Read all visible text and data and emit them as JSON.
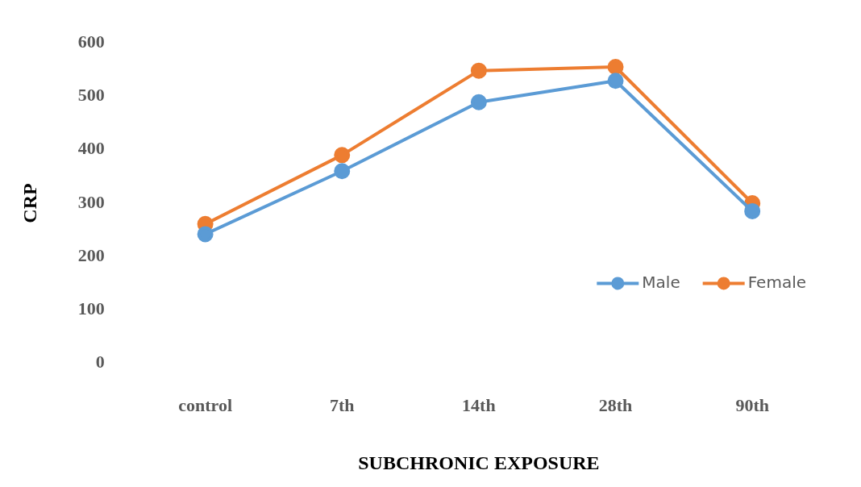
{
  "chart_data": {
    "type": "line",
    "xlabel": "SUBCHRONIC EXPOSURE",
    "ylabel": "CRP",
    "categories": [
      "control",
      "7th",
      "14th",
      "28th",
      "90th"
    ],
    "series": [
      {
        "name": "Male",
        "color": "#5b9bd5",
        "values": [
          242,
          360,
          489,
          529,
          285
        ]
      },
      {
        "name": "Female",
        "color": "#ed7d31",
        "values": [
          261,
          390,
          548,
          555,
          300
        ]
      }
    ],
    "ylim": [
      0,
      600
    ],
    "yticks": [
      0,
      100,
      200,
      300,
      400,
      500,
      600
    ],
    "grid": false,
    "legend": "right",
    "marker": "circle",
    "line_style": "solid"
  }
}
